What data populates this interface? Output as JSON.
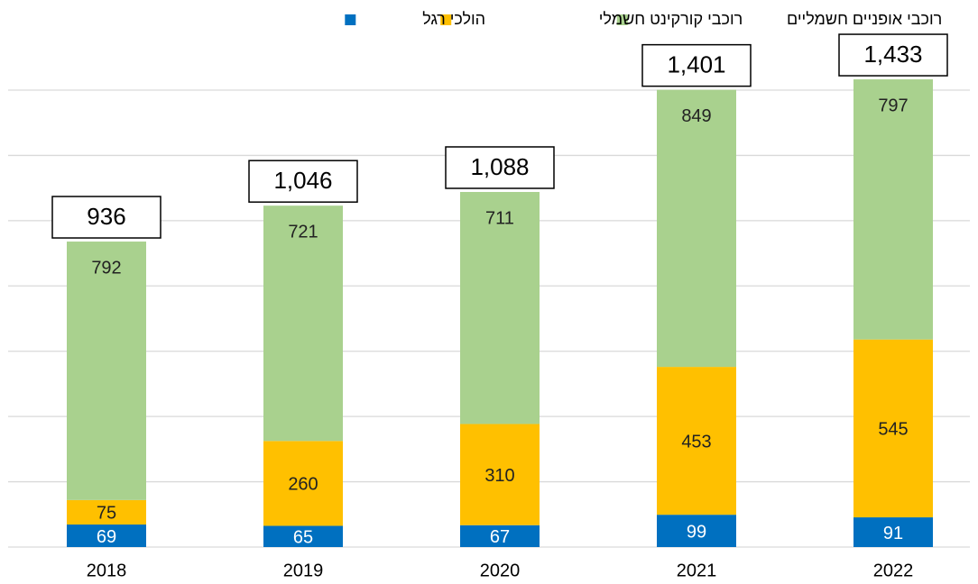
{
  "chart_data": {
    "type": "stacked_bar",
    "categories": [
      "2018",
      "2019",
      "2020",
      "2021",
      "2022"
    ],
    "series": [
      {
        "name": "הולכי רגל",
        "color": "#0070c0",
        "values": [
          69,
          65,
          67,
          99,
          91
        ]
      },
      {
        "name": "רוכבי קורקינט חשמלי",
        "color": "#ffc000",
        "values": [
          75,
          260,
          310,
          453,
          545
        ]
      },
      {
        "name": "רוכבי אופניים חשמליים",
        "color": "#a9d18e",
        "values": [
          792,
          721,
          711,
          849,
          797
        ]
      }
    ],
    "totals": [
      936,
      1046,
      1088,
      1401,
      1433
    ],
    "total_labels": [
      "936",
      "1,046",
      "1,088",
      "1,401",
      "1,433"
    ],
    "ylim": [
      0,
      1400
    ],
    "yticks": [
      0,
      200,
      400,
      600,
      800,
      1000,
      1200,
      1400
    ],
    "grid": true
  }
}
